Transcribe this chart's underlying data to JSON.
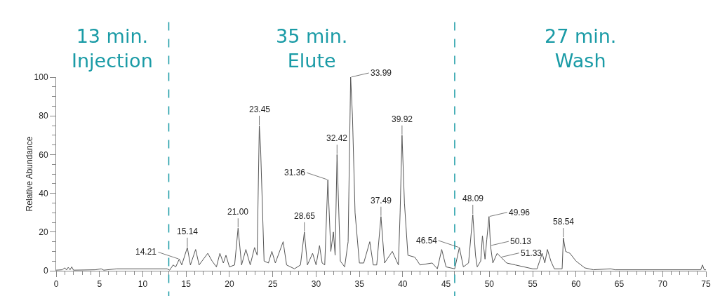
{
  "chart_data": {
    "type": "line",
    "ylabel": "Relative Abundance",
    "xlim": [
      0,
      75
    ],
    "xticks": [
      0,
      5,
      10,
      15,
      20,
      25,
      30,
      35,
      40,
      45,
      50,
      55,
      60,
      65,
      70,
      75
    ],
    "ylim": [
      0,
      100
    ],
    "yticks": [
      0,
      20,
      40,
      60,
      80,
      100
    ],
    "grid": false,
    "marker": "none",
    "line_style": "solid",
    "series": [
      {
        "color": "#555555",
        "x": [
          0,
          0.7,
          1.0,
          1.2,
          1.4,
          1.6,
          1.8,
          2.0,
          4.5,
          5.2,
          5.5,
          7,
          12.8,
          13.1,
          13.5,
          13.8,
          14.21,
          14.5,
          15.14,
          15.5,
          16.1,
          16.5,
          17.5,
          18.0,
          18.5,
          18.9,
          19.3,
          19.6,
          20.0,
          20.6,
          21.0,
          21.4,
          21.9,
          22.4,
          22.9,
          23.2,
          23.45,
          23.6,
          24.0,
          24.5,
          24.9,
          25.3,
          26.2,
          26.6,
          27.5,
          28.2,
          28.65,
          29.0,
          29.6,
          30.0,
          30.4,
          30.7,
          31.0,
          31.36,
          31.7,
          32.0,
          32.2,
          32.42,
          32.8,
          33.3,
          33.7,
          33.99,
          34.2,
          34.5,
          35.0,
          35.5,
          36.2,
          36.6,
          37.0,
          37.49,
          37.9,
          38.8,
          39.5,
          39.7,
          39.92,
          40.2,
          40.6,
          41.4,
          42,
          43.4,
          44.0,
          44.5,
          45.0,
          46.0,
          46.54,
          47.0,
          47.6,
          48.09,
          48.4,
          48.6,
          49.0,
          49.2,
          49.5,
          49.7,
          49.96,
          50.13,
          50.4,
          50.9,
          51.33,
          52,
          53,
          55.0,
          55.5,
          56.1,
          56.4,
          56.7,
          57.1,
          57.5,
          58.4,
          58.54,
          58.8,
          59.3,
          60,
          61,
          62,
          64,
          64.5,
          74.4,
          74.6,
          74.8,
          75
        ],
        "values": [
          0.3,
          0.5,
          1.5,
          0.4,
          1.8,
          0.5,
          2,
          0.3,
          0.5,
          1.0,
          0.3,
          1.0,
          1.0,
          0.3,
          3,
          2,
          6,
          3,
          12,
          3,
          11,
          3,
          9,
          5,
          2,
          9,
          4,
          8,
          2,
          3,
          22,
          3,
          11,
          3,
          12,
          8,
          75,
          63,
          5,
          4,
          10,
          4,
          15,
          3,
          1,
          3,
          20,
          3,
          9,
          3,
          13,
          4,
          3,
          47,
          10,
          20,
          8,
          60,
          5,
          2,
          15,
          100,
          80,
          30,
          4,
          4,
          15,
          3,
          3,
          28,
          4,
          10,
          3,
          30,
          70,
          35,
          8,
          7,
          3,
          4,
          1,
          11,
          2,
          1,
          12,
          2,
          4,
          29,
          8,
          2,
          5,
          18,
          6,
          16,
          28,
          13,
          4,
          9,
          7,
          4,
          3,
          1,
          1,
          9,
          4,
          11,
          5,
          1,
          1,
          17,
          10,
          9,
          5,
          1.5,
          0.5,
          1.0,
          0.5,
          0.5,
          3,
          0.5,
          0.5
        ]
      }
    ],
    "ref_lines": [
      {
        "axis": "x",
        "value": 13,
        "color": "#1a9ba6",
        "line_style": "dashed"
      },
      {
        "axis": "x",
        "value": 46,
        "color": "#1a9ba6",
        "line_style": "dashed"
      }
    ],
    "annotations": [
      "13 min.\nInjection",
      "35 min.\nElute",
      "27 min.\nWash",
      {
        "text": "14.21",
        "x": 14.21,
        "y": 6
      },
      {
        "text": "15.14",
        "x": 15.14,
        "y": 12
      },
      {
        "text": "21.00",
        "x": 21.0,
        "y": 22
      },
      {
        "text": "23.45",
        "x": 23.45,
        "y": 75
      },
      {
        "text": "28.65",
        "x": 28.65,
        "y": 20
      },
      {
        "text": "31.36",
        "x": 31.36,
        "y": 47
      },
      {
        "text": "32.42",
        "x": 32.42,
        "y": 60
      },
      {
        "text": "33.99",
        "x": 33.99,
        "y": 100
      },
      {
        "text": "37.49",
        "x": 37.49,
        "y": 28
      },
      {
        "text": "39.92",
        "x": 39.92,
        "y": 70
      },
      {
        "text": "46.54",
        "x": 46.54,
        "y": 12
      },
      {
        "text": "48.09",
        "x": 48.09,
        "y": 29
      },
      {
        "text": "49.96",
        "x": 49.96,
        "y": 28
      },
      {
        "text": "50.13",
        "x": 50.13,
        "y": 13
      },
      {
        "text": "51.33",
        "x": 51.33,
        "y": 7
      },
      {
        "text": "58.54",
        "x": 58.54,
        "y": 17
      }
    ]
  }
}
